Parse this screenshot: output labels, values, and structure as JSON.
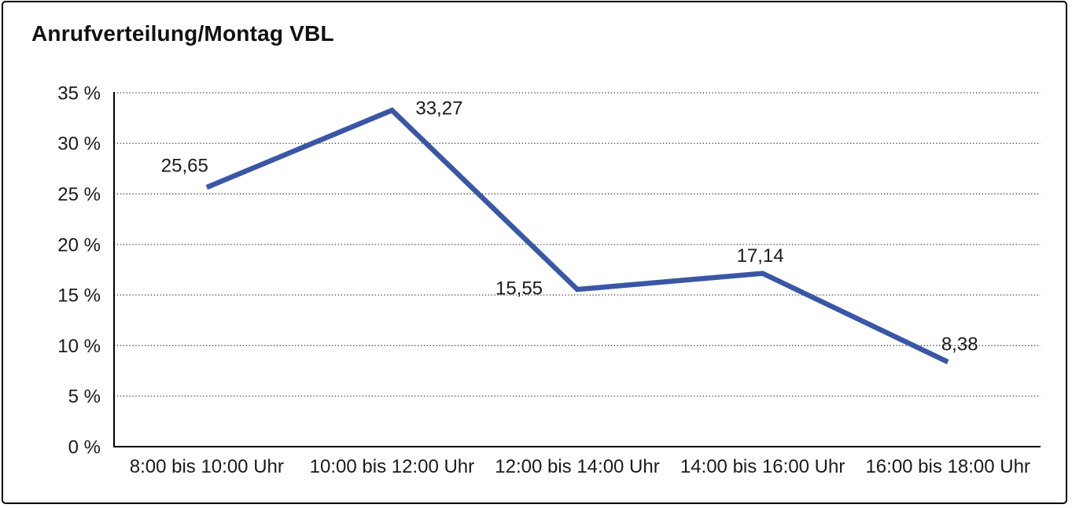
{
  "chart_data": {
    "type": "line",
    "title": "Anrufverteilung/Montag VBL",
    "categories": [
      "8:00 bis 10:00 Uhr",
      "10:00 bis 12:00 Uhr",
      "12:00 bis 14:00 Uhr",
      "14:00 bis 16:00 Uhr",
      "16:00 bis 18:00 Uhr"
    ],
    "values": [
      25.65,
      33.27,
      15.55,
      17.14,
      8.38
    ],
    "point_labels": [
      "25,65",
      "33,27",
      "15,55",
      "17,14",
      "8,38"
    ],
    "xlabel": "",
    "ylabel": "",
    "ylim": [
      0,
      35
    ],
    "ytick_values": [
      0,
      5,
      10,
      15,
      20,
      25,
      30,
      35
    ],
    "ytick_labels": [
      "0 %",
      "5 %",
      "10 %",
      "15 %",
      "20 %",
      "25 %",
      "30 %",
      "35 %"
    ],
    "grid": "horizontal-dotted",
    "legend": "none",
    "line_color": "#3A57A6",
    "axis_color": "#000000",
    "grid_color": "#3d3d3d",
    "text_color": "#1a1a1a",
    "background": "#ffffff"
  }
}
